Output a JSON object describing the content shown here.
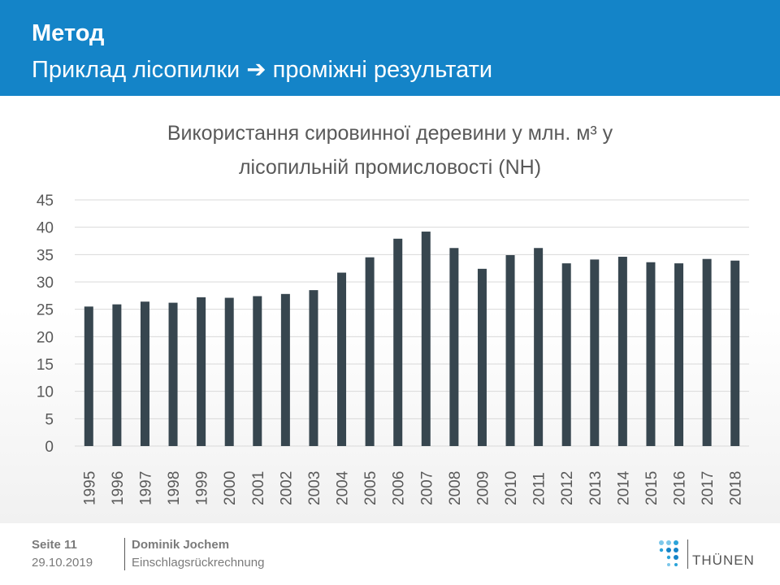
{
  "header": {
    "title": "Метод",
    "subtitle": "Приклад лісопилки ➔ проміжні результати"
  },
  "footer": {
    "page": "Seite 11",
    "date": "29.10.2019",
    "author": "Dominik Jochem",
    "topic": "Einschlagsrückrechnung",
    "logo_text": "THÜNEN"
  },
  "colors": {
    "header_bg": "#1484c8",
    "bar": "#37464f",
    "gridline": "#d9d9d9",
    "text": "#595959"
  },
  "chart_data": {
    "type": "bar",
    "title_lines": [
      "Використання сировинної деревини у млн. м³ у",
      "лісопильній промисловості (NH)"
    ],
    "categories": [
      "1995",
      "1996",
      "1997",
      "1998",
      "1999",
      "2000",
      "2001",
      "2002",
      "2003",
      "2004",
      "2005",
      "2006",
      "2007",
      "2008",
      "2009",
      "2010",
      "2011",
      "2012",
      "2013",
      "2014",
      "2015",
      "2016",
      "2017",
      "2018"
    ],
    "values": [
      25.5,
      25.9,
      26.4,
      26.2,
      27.2,
      27.1,
      27.4,
      27.8,
      28.5,
      31.7,
      34.5,
      37.9,
      39.2,
      36.2,
      32.4,
      34.9,
      36.2,
      33.4,
      34.1,
      34.6,
      33.6,
      33.4,
      34.2,
      33.9
    ],
    "ylim": [
      0,
      45
    ],
    "yticks": [
      0,
      5,
      10,
      15,
      20,
      25,
      30,
      35,
      40,
      45
    ],
    "grid": true,
    "legend": "none"
  }
}
